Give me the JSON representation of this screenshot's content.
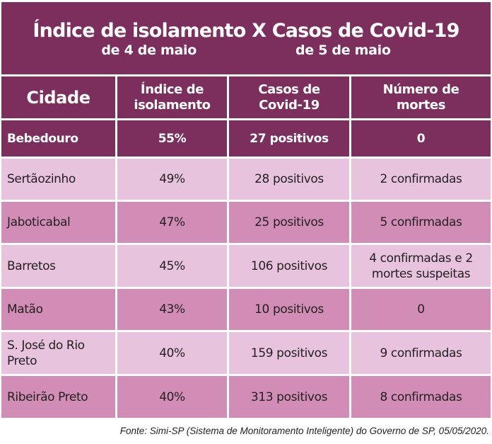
{
  "title": "Índice de isolamento X Casos de Covid-19",
  "subtitle_left": "de 4 de maio",
  "subtitle_right": "de 5 de maio",
  "headers": [
    "Cidade",
    "Índice de isolamento",
    "Casos de Covid-19",
    "Número de mortes"
  ],
  "rows": [
    [
      "Bebedouro",
      "55%",
      "27 positivos",
      "0"
    ],
    [
      "Sertãozinho",
      "49%",
      "28 positivos",
      "2 confirmadas"
    ],
    [
      "Jaboticabal",
      "47%",
      "25 positivos",
      "5 confirmadas"
    ],
    [
      "Barretos",
      "45%",
      "106 positivos",
      "4 confirmadas e 2 mortes suspeitas"
    ],
    [
      "Matão",
      "43%",
      "10 positivos",
      "0"
    ],
    [
      "S. José do Rio Preto",
      "40%",
      "159 positivos",
      "9 confirmadas"
    ],
    [
      "Ribeirão Preto",
      "40%",
      "313 positivos",
      "8 confirmadas"
    ]
  ],
  "footer": "Fonte: Simi-SP (Sistema de Monitoramento Inteligente) do Governo de SP, 05/05/2020.",
  "colors": {
    "dark": "#7c2e5d",
    "light": "#e8c3de",
    "medium": "#d18db5"
  }
}
